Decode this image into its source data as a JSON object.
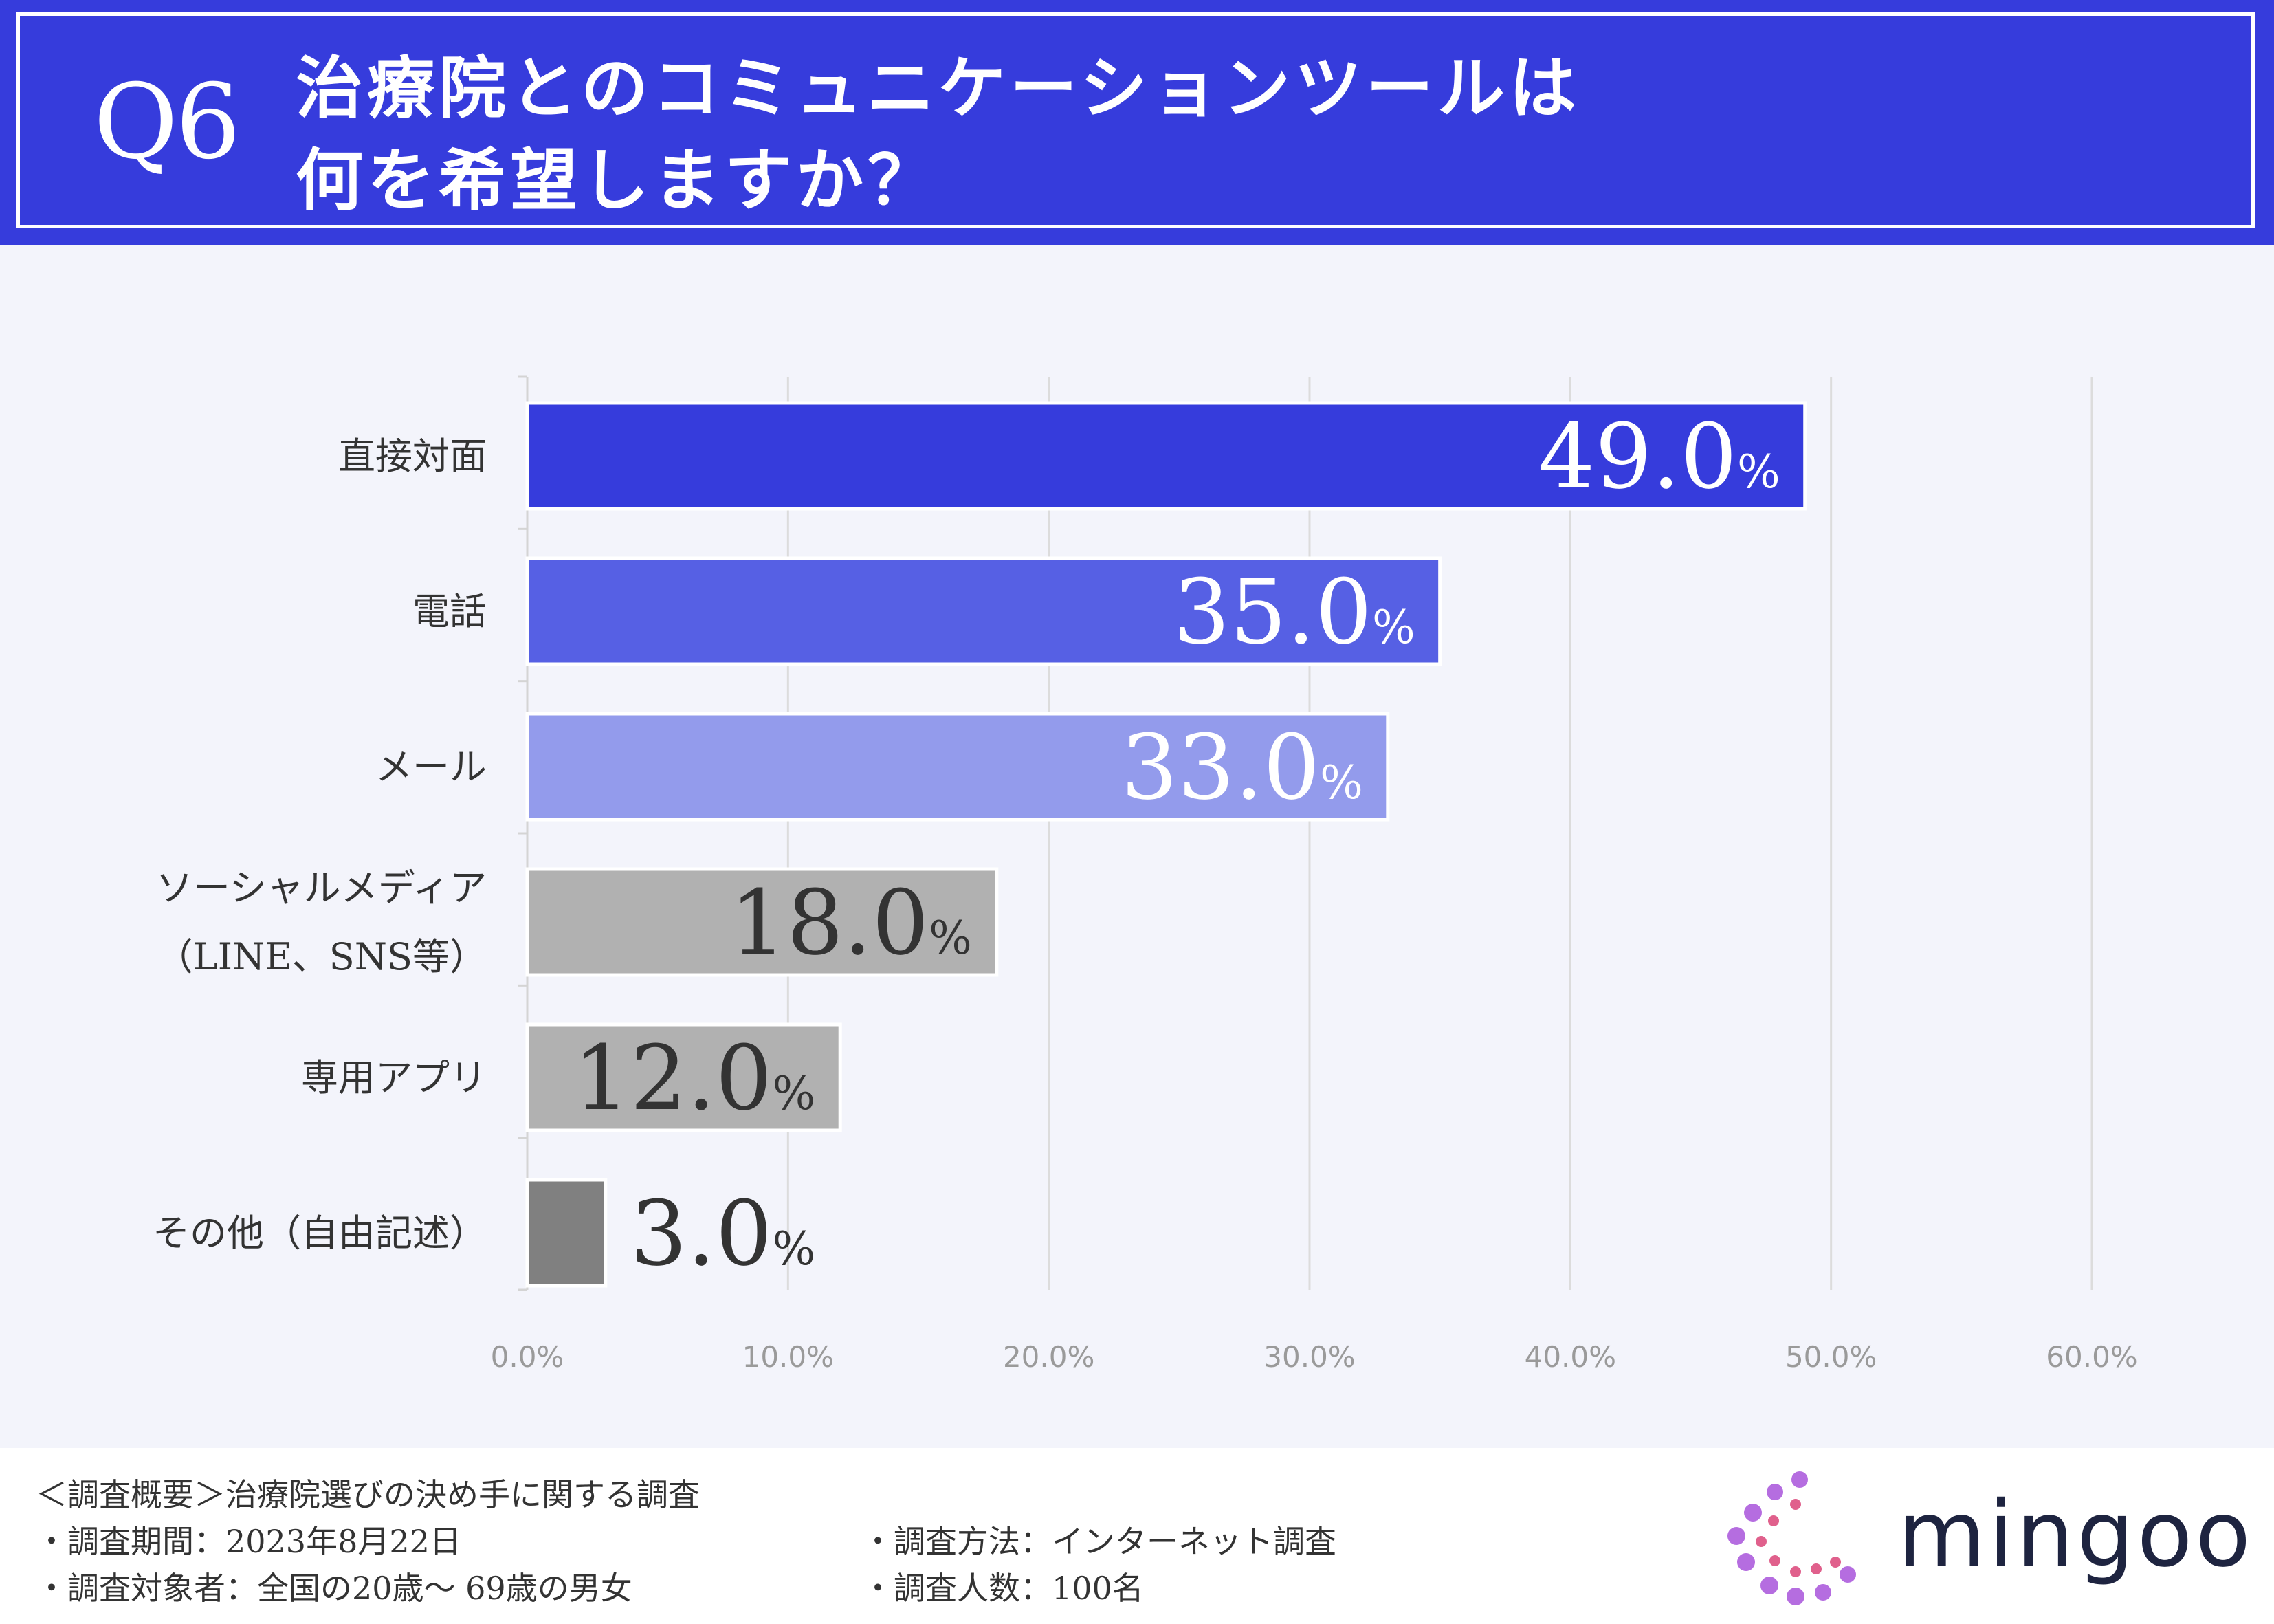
{
  "header": {
    "q_number": "Q6",
    "title_line1": "治療院とのコミュニケーションツールは",
    "title_line2": "何を希望しますか？"
  },
  "chart_data": {
    "type": "bar",
    "orientation": "horizontal",
    "title": "治療院とのコミュニケーションツールは何を希望しますか？",
    "categories": [
      [
        "直接対面"
      ],
      [
        "電話"
      ],
      [
        "メール"
      ],
      [
        "ソーシャルメディア",
        "（LINE、SNS等）"
      ],
      [
        "専用アプリ"
      ],
      [
        "その他（自由記述）"
      ]
    ],
    "values": [
      49.0,
      35.0,
      33.0,
      18.0,
      12.0,
      3.0
    ],
    "value_labels": [
      "49.0",
      "35.0",
      "33.0",
      "18.0",
      "12.0",
      "3.0"
    ],
    "value_suffix": "%",
    "bar_colors": [
      "#363cdc",
      "#5660e4",
      "#939bec",
      "#b1b1b1",
      "#b1b1b1",
      "#808080"
    ],
    "label_colors": [
      "#ffffff",
      "#ffffff",
      "#ffffff",
      "#333333",
      "#333333",
      "#333333"
    ],
    "x_ticks": [
      "0.0%",
      "10.0%",
      "20.0%",
      "30.0%",
      "40.0%",
      "50.0%",
      "60.0%"
    ],
    "xlim": [
      0,
      60
    ],
    "grid": true,
    "xlabel": "",
    "ylabel": ""
  },
  "footer": {
    "summary": "＜調査概要＞治療院選びの決め手に関する調査",
    "period": "・調査期間：2023年8月22日",
    "method": "・調査方法：インターネット調査",
    "target": "・調査対象者：全国の20歳～ 69歳の男女",
    "count": "・調査人数：100名",
    "brand": "mingoo"
  },
  "colors": {
    "primary": "#363cdc",
    "background": "#f3f4fb",
    "logo_text": "#1e2440",
    "logo_purple": "#b56de0",
    "logo_pink": "#e0608c"
  }
}
